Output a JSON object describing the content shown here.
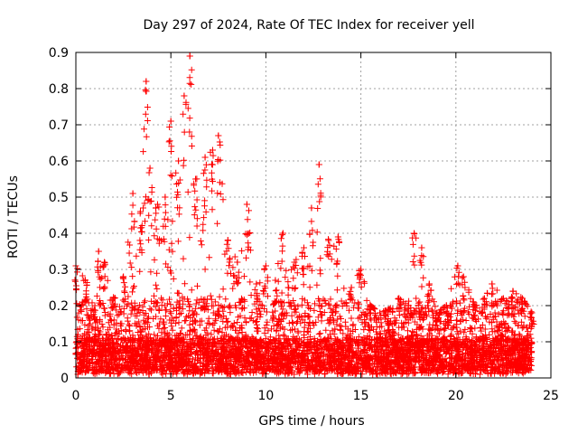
{
  "chart_data": {
    "type": "scatter",
    "title": "Day 297 of 2024, Rate Of TEC Index for receiver yell",
    "xlabel": "GPS time / hours",
    "ylabel": "ROTI / TECUs",
    "xlim": [
      0,
      25
    ],
    "ylim": [
      0,
      0.9
    ],
    "xticks": [
      "0",
      "5",
      "10",
      "15",
      "20",
      "25"
    ],
    "yticks": [
      "0",
      "0.1",
      "0.2",
      "0.3",
      "0.4",
      "0.5",
      "0.6",
      "0.7",
      "0.8",
      "0.9"
    ],
    "grid": true,
    "marker": "+",
    "color": "#ff0000",
    "series": [
      {
        "name": "ROTI",
        "note": "dense scatter; upper-envelope (peak) values below are read from the figure, baseline fill 0–0.1 throughout",
        "envelope": [
          {
            "x": 0.0,
            "y": 0.31
          },
          {
            "x": 0.5,
            "y": 0.27
          },
          {
            "x": 1.0,
            "y": 0.2
          },
          {
            "x": 1.2,
            "y": 0.35
          },
          {
            "x": 1.5,
            "y": 0.32
          },
          {
            "x": 2.0,
            "y": 0.22
          },
          {
            "x": 2.5,
            "y": 0.28
          },
          {
            "x": 3.0,
            "y": 0.51
          },
          {
            "x": 3.4,
            "y": 0.46
          },
          {
            "x": 3.7,
            "y": 0.82
          },
          {
            "x": 3.9,
            "y": 0.58
          },
          {
            "x": 4.3,
            "y": 0.48
          },
          {
            "x": 4.7,
            "y": 0.5
          },
          {
            "x": 5.0,
            "y": 0.71
          },
          {
            "x": 5.4,
            "y": 0.6
          },
          {
            "x": 5.7,
            "y": 0.78
          },
          {
            "x": 6.0,
            "y": 0.89
          },
          {
            "x": 6.3,
            "y": 0.55
          },
          {
            "x": 6.8,
            "y": 0.61
          },
          {
            "x": 7.2,
            "y": 0.63
          },
          {
            "x": 7.5,
            "y": 0.67
          },
          {
            "x": 8.0,
            "y": 0.38
          },
          {
            "x": 8.5,
            "y": 0.32
          },
          {
            "x": 9.0,
            "y": 0.48
          },
          {
            "x": 9.5,
            "y": 0.26
          },
          {
            "x": 10.0,
            "y": 0.31
          },
          {
            "x": 10.5,
            "y": 0.27
          },
          {
            "x": 10.9,
            "y": 0.4
          },
          {
            "x": 11.5,
            "y": 0.32
          },
          {
            "x": 12.0,
            "y": 0.36
          },
          {
            "x": 12.4,
            "y": 0.47
          },
          {
            "x": 12.8,
            "y": 0.59
          },
          {
            "x": 13.3,
            "y": 0.38
          },
          {
            "x": 13.8,
            "y": 0.39
          },
          {
            "x": 14.5,
            "y": 0.25
          },
          {
            "x": 15.0,
            "y": 0.3
          },
          {
            "x": 15.5,
            "y": 0.2
          },
          {
            "x": 16.0,
            "y": 0.18
          },
          {
            "x": 16.5,
            "y": 0.19
          },
          {
            "x": 17.0,
            "y": 0.22
          },
          {
            "x": 17.5,
            "y": 0.2
          },
          {
            "x": 17.8,
            "y": 0.4
          },
          {
            "x": 18.2,
            "y": 0.36
          },
          {
            "x": 18.6,
            "y": 0.26
          },
          {
            "x": 19.0,
            "y": 0.18
          },
          {
            "x": 19.5,
            "y": 0.2
          },
          {
            "x": 20.1,
            "y": 0.31
          },
          {
            "x": 20.4,
            "y": 0.28
          },
          {
            "x": 21.0,
            "y": 0.2
          },
          {
            "x": 21.5,
            "y": 0.22
          },
          {
            "x": 21.9,
            "y": 0.26
          },
          {
            "x": 22.5,
            "y": 0.22
          },
          {
            "x": 23.0,
            "y": 0.24
          },
          {
            "x": 23.5,
            "y": 0.22
          },
          {
            "x": 24.0,
            "y": 0.18
          }
        ]
      }
    ]
  }
}
